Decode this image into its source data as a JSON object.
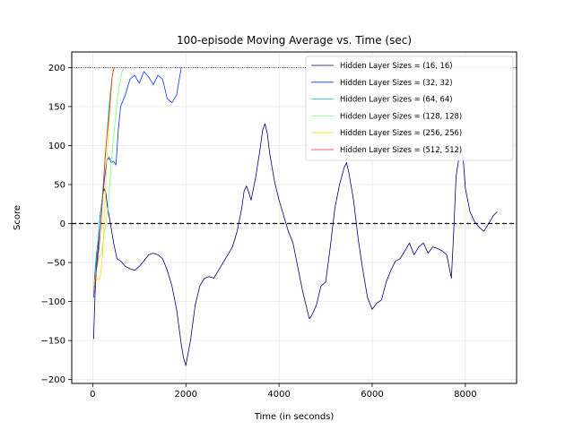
{
  "chart_data": {
    "type": "line",
    "title": "100-episode Moving Average vs. Time (sec)",
    "xlabel": "Time (in seconds)",
    "ylabel": "Score",
    "xlim": [
      -450,
      9100
    ],
    "ylim": [
      -205,
      220
    ],
    "xticks": [
      0,
      2000,
      4000,
      6000,
      8000
    ],
    "yticks": [
      -200,
      -150,
      -100,
      -50,
      0,
      50,
      100,
      150,
      200
    ],
    "grid": true,
    "legend_position": "top-right",
    "reference_lines": [
      {
        "y": 200,
        "style": "dotted",
        "color": "#000000"
      },
      {
        "y": 0,
        "style": "dashed",
        "color": "#000000"
      }
    ],
    "series": [
      {
        "name": "Hidden Layer Sizes = (16, 16)",
        "color": "#00007f",
        "x": [
          20,
          30,
          50,
          80,
          120,
          160,
          200,
          240,
          280,
          320,
          380,
          450,
          520,
          600,
          700,
          800,
          900,
          1000,
          1100,
          1200,
          1300,
          1400,
          1500,
          1600,
          1700,
          1800,
          1900,
          1950,
          2000,
          2100,
          2200,
          2300,
          2400,
          2500,
          2600,
          2700,
          2800,
          2900,
          3000,
          3100,
          3200,
          3250,
          3300,
          3350,
          3400,
          3500,
          3600,
          3650,
          3700,
          3750,
          3800,
          3900,
          4000,
          4100,
          4200,
          4300,
          4400,
          4500,
          4600,
          4650,
          4700,
          4800,
          4900,
          5000,
          5100,
          5200,
          5300,
          5400,
          5450,
          5500,
          5600,
          5700,
          5800,
          5900,
          6000,
          6100,
          6200,
          6300,
          6400,
          6500,
          6600,
          6700,
          6800,
          6900,
          7000,
          7100,
          7200,
          7300,
          7400,
          7500,
          7600,
          7650,
          7700,
          7750,
          7800,
          7850,
          7900,
          7950,
          8000,
          8050,
          8100,
          8200,
          8300,
          8400,
          8500,
          8600,
          8680
        ],
        "y": [
          -148,
          -130,
          -90,
          -55,
          -30,
          10,
          30,
          45,
          40,
          20,
          0,
          -25,
          -45,
          -48,
          -55,
          -58,
          -60,
          -55,
          -48,
          -40,
          -38,
          -40,
          -45,
          -60,
          -80,
          -110,
          -155,
          -172,
          -182,
          -150,
          -105,
          -80,
          -70,
          -68,
          -70,
          -60,
          -50,
          -40,
          -30,
          -10,
          20,
          42,
          48,
          40,
          30,
          60,
          98,
          120,
          128,
          115,
          90,
          55,
          30,
          10,
          -10,
          -25,
          -55,
          -85,
          -110,
          -122,
          -118,
          -105,
          -80,
          -75,
          -30,
          20,
          50,
          72,
          78,
          65,
          30,
          -20,
          -60,
          -95,
          -110,
          -102,
          -98,
          -75,
          -60,
          -48,
          -45,
          -35,
          -25,
          -40,
          -30,
          -25,
          -38,
          -30,
          -32,
          -35,
          -40,
          -55,
          -70,
          -10,
          60,
          80,
          95,
          85,
          45,
          30,
          15,
          2,
          -5,
          -10,
          0,
          10,
          15
        ]
      },
      {
        "name": "Hidden Layer Sizes = (32, 32)",
        "color": "#0038ff",
        "x": [
          20,
          40,
          80,
          120,
          160,
          200,
          250,
          300,
          350,
          400,
          450,
          500,
          550,
          600,
          700,
          800,
          900,
          1000,
          1100,
          1200,
          1300,
          1400,
          1500,
          1600,
          1700,
          1800,
          1900
        ],
        "y": [
          -95,
          -70,
          -40,
          -20,
          10,
          30,
          55,
          80,
          85,
          78,
          80,
          75,
          120,
          150,
          165,
          185,
          190,
          180,
          195,
          188,
          178,
          190,
          185,
          160,
          155,
          165,
          200
        ]
      },
      {
        "name": "Hidden Layer Sizes = (64, 64)",
        "color": "#00c8d8",
        "x": [
          30,
          60,
          100,
          150,
          200,
          250,
          300,
          350,
          400,
          450
        ],
        "y": [
          -85,
          -60,
          -30,
          0,
          30,
          70,
          110,
          150,
          180,
          200
        ]
      },
      {
        "name": "Hidden Layer Sizes = (128, 128)",
        "color": "#7cff79",
        "x": [
          30,
          80,
          130,
          180,
          230,
          280,
          330,
          380,
          430,
          480,
          530,
          580,
          650
        ],
        "y": [
          -80,
          -60,
          -45,
          -40,
          -20,
          0,
          20,
          60,
          100,
          130,
          160,
          180,
          200
        ]
      },
      {
        "name": "Hidden Layer Sizes = (256, 256)",
        "color": "#ffe000",
        "x": [
          30,
          60,
          90,
          120,
          150,
          180,
          210,
          250,
          290,
          330,
          370,
          410,
          450
        ],
        "y": [
          -75,
          -70,
          -72,
          -70,
          -72,
          -60,
          -40,
          10,
          60,
          110,
          150,
          185,
          200
        ]
      },
      {
        "name": "Hidden Layer Sizes = (512, 512)",
        "color": "#ee3300",
        "x": [
          30,
          60,
          100,
          140,
          180,
          220,
          260,
          300,
          340,
          380,
          420,
          460
        ],
        "y": [
          -90,
          -70,
          -50,
          -30,
          0,
          40,
          80,
          110,
          130,
          160,
          190,
          200
        ]
      }
    ]
  }
}
